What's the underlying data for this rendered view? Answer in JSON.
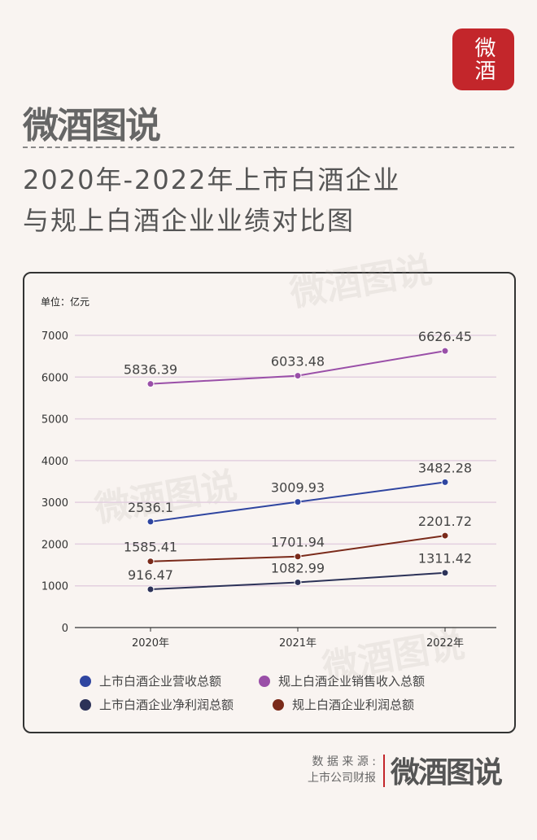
{
  "header": {
    "app_logo": "微酒",
    "brand": "微酒图说",
    "title_line1": "2020年-2022年上市白酒企业",
    "title_line2": "与规上白酒企业业绩对比图"
  },
  "watermark": "微酒图说",
  "footer": {
    "source_label": "数 据 来 源 :",
    "source_value": "上市公司财报",
    "brand": "微酒图说"
  },
  "chart_data": {
    "type": "line",
    "unit_label": "单位：亿元",
    "x": [
      "2020年",
      "2021年",
      "2022年"
    ],
    "ylim": [
      0,
      7000
    ],
    "yticks": [
      0,
      1000,
      2000,
      3000,
      4000,
      5000,
      6000,
      7000
    ],
    "grid": true,
    "legend_position": "bottom",
    "series": [
      {
        "name": "上市白酒企业营收总额",
        "color": "#2f45a0",
        "values": [
          2536.1,
          3009.93,
          3482.28
        ],
        "labels": [
          "2536.1",
          "3009.93",
          "3482.28"
        ]
      },
      {
        "name": "规上白酒企业销售收入总额",
        "color": "#9a4fa8",
        "values": [
          5836.39,
          6033.48,
          6626.45
        ],
        "labels": [
          "5836.39",
          "6033.48",
          "6626.45"
        ]
      },
      {
        "name": "上市白酒企业净利润总额",
        "color": "#2c3258",
        "values": [
          916.47,
          1082.99,
          1311.42
        ],
        "labels": [
          "916.47",
          "1082.99",
          "1311.42"
        ]
      },
      {
        "name": "规上白酒企业利润总额",
        "color": "#7a2a1a",
        "values": [
          1585.41,
          1701.94,
          2201.72
        ],
        "labels": [
          "1585.41",
          "1701.94",
          "2201.72"
        ]
      }
    ]
  }
}
